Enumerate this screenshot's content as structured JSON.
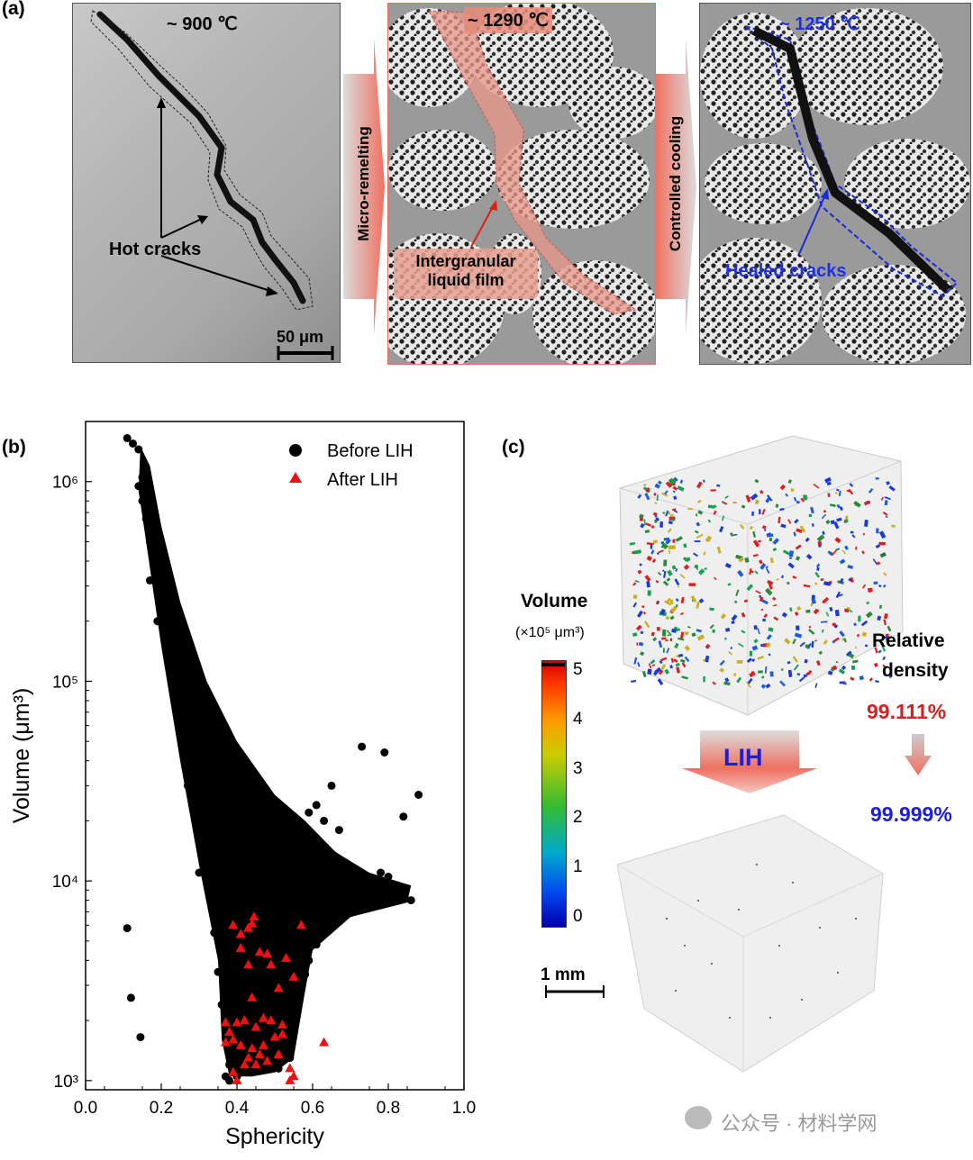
{
  "panel_a": {
    "label": "(a)",
    "img1": {
      "temp": "~ 900 ℃",
      "annotation": "Hot cracks",
      "scale_bar": "50 μm"
    },
    "arrow1": {
      "text": "Micro-remelting"
    },
    "img2": {
      "temp": "~ 1290 ℃",
      "annotation_line1": "Intergranular",
      "annotation_line2": "liquid film"
    },
    "arrow2": {
      "text": "Controlled cooling"
    },
    "img3": {
      "temp": "~ 1250 ℃",
      "annotation": "Healed cracks"
    }
  },
  "panel_b": {
    "label": "(b)"
  },
  "panel_c": {
    "label": "(c)",
    "colorbar": {
      "title": "Volume",
      "unit": "(×10⁵ μm³)",
      "ticks": [
        "5",
        "4",
        "3",
        "2",
        "1",
        "0"
      ]
    },
    "arrow_label": "LIH",
    "density_title_1": "Relative",
    "density_title_2": "density",
    "density_before": "99.111%",
    "density_after": "99.999%",
    "scale_bar": "1 mm",
    "colors": {
      "before": "#d62020",
      "after": "#1c1ce0"
    }
  },
  "watermark": "公众号 · 材料学网",
  "chart_data": {
    "type": "scatter",
    "xlabel": "Sphericity",
    "ylabel": "Volume (μm³)",
    "xlim": [
      0.0,
      1.0
    ],
    "ylim": [
      900,
      2000000
    ],
    "yscale": "log",
    "xticks": [
      "0.0",
      "0.2",
      "0.4",
      "0.6",
      "0.8",
      "1.0"
    ],
    "yticks": [
      {
        "value": 1000,
        "label": "10³"
      },
      {
        "value": 10000,
        "label": "10⁴"
      },
      {
        "value": 100000,
        "label": "10⁵"
      },
      {
        "value": 1000000,
        "label": "10⁶"
      }
    ],
    "legend_position": "top-right",
    "series": [
      {
        "name": "Before LIH",
        "marker": "circle",
        "color": "#000000",
        "points": [
          [
            0.11,
            1650000
          ],
          [
            0.125,
            1550000
          ],
          [
            0.14,
            1450000
          ],
          [
            0.15,
            1050000
          ],
          [
            0.14,
            950000
          ],
          [
            0.16,
            900000
          ],
          [
            0.15,
            800000
          ],
          [
            0.17,
            750000
          ],
          [
            0.16,
            650000
          ],
          [
            0.18,
            550000
          ],
          [
            0.17,
            500000
          ],
          [
            0.19,
            420000
          ],
          [
            0.2,
            350000
          ],
          [
            0.18,
            380000
          ],
          [
            0.21,
            300000
          ],
          [
            0.22,
            250000
          ],
          [
            0.2,
            220000
          ],
          [
            0.24,
            200000
          ],
          [
            0.23,
            170000
          ],
          [
            0.26,
            150000
          ],
          [
            0.25,
            130000
          ],
          [
            0.27,
            110000
          ],
          [
            0.29,
            95000
          ],
          [
            0.28,
            85000
          ],
          [
            0.3,
            70000
          ],
          [
            0.32,
            60000
          ],
          [
            0.31,
            52000
          ],
          [
            0.34,
            45000
          ],
          [
            0.33,
            38000
          ],
          [
            0.36,
            32000
          ],
          [
            0.38,
            28000
          ],
          [
            0.37,
            24000
          ],
          [
            0.4,
            21000
          ],
          [
            0.42,
            18000
          ],
          [
            0.41,
            15000
          ],
          [
            0.44,
            13000
          ],
          [
            0.46,
            11000
          ],
          [
            0.45,
            9500
          ],
          [
            0.48,
            8500
          ],
          [
            0.5,
            7200
          ],
          [
            0.49,
            6300
          ],
          [
            0.52,
            5600
          ],
          [
            0.54,
            5000
          ],
          [
            0.53,
            4300
          ],
          [
            0.56,
            3800
          ],
          [
            0.58,
            3400
          ],
          [
            0.57,
            3000
          ],
          [
            0.55,
            2700
          ],
          [
            0.52,
            2300
          ],
          [
            0.5,
            2000
          ],
          [
            0.47,
            1800
          ],
          [
            0.45,
            1600
          ],
          [
            0.42,
            1450
          ],
          [
            0.4,
            1300
          ],
          [
            0.38,
            1200
          ],
          [
            0.37,
            1050
          ],
          [
            0.44,
            1100
          ],
          [
            0.48,
            1250
          ],
          [
            0.51,
            1150
          ],
          [
            0.41,
            1700
          ],
          [
            0.39,
            2200
          ],
          [
            0.43,
            2600
          ],
          [
            0.46,
            3000
          ],
          [
            0.49,
            3400
          ],
          [
            0.36,
            2400
          ],
          [
            0.35,
            3500
          ],
          [
            0.34,
            5500
          ],
          [
            0.38,
            6500
          ],
          [
            0.42,
            7500
          ],
          [
            0.3,
            11000
          ],
          [
            0.33,
            16000
          ],
          [
            0.36,
            20000
          ],
          [
            0.27,
            30000
          ],
          [
            0.29,
            40000
          ],
          [
            0.24,
            70000
          ],
          [
            0.22,
            120000
          ],
          [
            0.19,
            200000
          ],
          [
            0.17,
            320000
          ],
          [
            0.6,
            14000
          ],
          [
            0.62,
            12000
          ],
          [
            0.64,
            10500
          ],
          [
            0.66,
            9000
          ],
          [
            0.68,
            8000
          ],
          [
            0.7,
            7000
          ],
          [
            0.72,
            8500
          ],
          [
            0.74,
            9200
          ],
          [
            0.76,
            10000
          ],
          [
            0.78,
            11000
          ],
          [
            0.8,
            10500
          ],
          [
            0.82,
            9500
          ],
          [
            0.84,
            8800
          ],
          [
            0.86,
            8000
          ],
          [
            0.88,
            27000
          ],
          [
            0.84,
            21000
          ],
          [
            0.79,
            44000
          ],
          [
            0.73,
            47000
          ],
          [
            0.65,
            30000
          ],
          [
            0.61,
            24000
          ],
          [
            0.59,
            22000
          ],
          [
            0.67,
            18000
          ],
          [
            0.63,
            20000
          ],
          [
            0.57,
            19000
          ],
          [
            0.56,
            16000
          ],
          [
            0.6,
            8500
          ],
          [
            0.62,
            6500
          ],
          [
            0.58,
            5500
          ],
          [
            0.61,
            4800
          ],
          [
            0.59,
            4000
          ],
          [
            0.11,
            5800
          ],
          [
            0.12,
            2600
          ],
          [
            0.145,
            1650
          ],
          [
            0.38,
            1000
          ],
          [
            0.4,
            1050
          ],
          [
            0.54,
            1300
          ]
        ]
      },
      {
        "name": "After LIH",
        "marker": "triangle",
        "color": "#ee1111",
        "points": [
          [
            0.39,
            6000
          ],
          [
            0.41,
            5400
          ],
          [
            0.44,
            6100
          ],
          [
            0.445,
            6600
          ],
          [
            0.43,
            5800
          ],
          [
            0.57,
            6000
          ],
          [
            0.41,
            4600
          ],
          [
            0.46,
            4400
          ],
          [
            0.48,
            4300
          ],
          [
            0.43,
            3800
          ],
          [
            0.49,
            3800
          ],
          [
            0.53,
            4100
          ],
          [
            0.55,
            3300
          ],
          [
            0.51,
            2900
          ],
          [
            0.44,
            2600
          ],
          [
            0.37,
            1950
          ],
          [
            0.38,
            1750
          ],
          [
            0.4,
            1950
          ],
          [
            0.42,
            2000
          ],
          [
            0.45,
            1850
          ],
          [
            0.47,
            2050
          ],
          [
            0.49,
            2000
          ],
          [
            0.52,
            1900
          ],
          [
            0.39,
            1600
          ],
          [
            0.41,
            1500
          ],
          [
            0.44,
            1450
          ],
          [
            0.47,
            1500
          ],
          [
            0.37,
            1550
          ],
          [
            0.46,
            1350
          ],
          [
            0.51,
            1350
          ],
          [
            0.63,
            1550
          ],
          [
            0.42,
            1200
          ],
          [
            0.45,
            1200
          ],
          [
            0.48,
            1250
          ],
          [
            0.54,
            1150
          ],
          [
            0.39,
            1100
          ],
          [
            0.55,
            1050
          ],
          [
            0.54,
            1000
          ],
          [
            0.4,
            1000
          ],
          [
            0.43,
            1300
          ],
          [
            0.5,
            1650
          ],
          [
            0.52,
            1700
          ]
        ]
      }
    ]
  }
}
